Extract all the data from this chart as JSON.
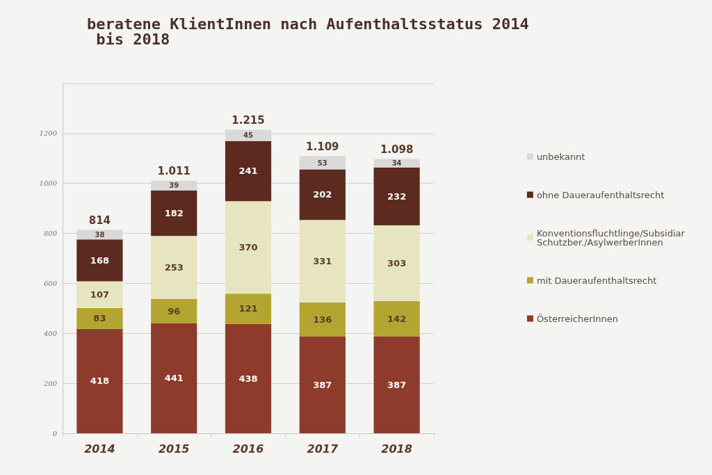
{
  "chart_data": {
    "type": "bar",
    "title": "beratene KlientInnen nach Aufenthaltsstatus 2014 bis 2018",
    "categories": [
      "2014",
      "2015",
      "2016",
      "2017",
      "2018"
    ],
    "stacked": true,
    "series": [
      {
        "name": "ÖsterreicherInnen",
        "color": "#8e3b2b",
        "values": [
          418,
          441,
          438,
          387,
          387
        ]
      },
      {
        "name": "mit Daueraufenthaltsrecht",
        "color": "#b3a530",
        "values": [
          83,
          96,
          121,
          136,
          142
        ]
      },
      {
        "name": "Konventionsfluchtlinge/Subsidiar Schutzber./AsylwerberInnen",
        "color": "#e6e5c0",
        "values": [
          107,
          253,
          370,
          331,
          303
        ]
      },
      {
        "name": "ohne Daueraufenthaltsrecht",
        "color": "#5c2a1e",
        "values": [
          168,
          182,
          241,
          202,
          232
        ]
      },
      {
        "name": "unbekannt",
        "color": "#d9d9d9",
        "values": [
          38,
          39,
          45,
          53,
          34
        ]
      }
    ],
    "totals": [
      "814",
      "1.011",
      "1.215",
      "1.109",
      "1.098"
    ],
    "ylim": [
      0,
      1400
    ],
    "yticks": [
      0,
      200,
      400,
      600,
      800,
      1000,
      1200,
      {
        "value": 1400,
        "label": null
      }
    ],
    "grid": true,
    "legend": "right",
    "data_labels": true
  }
}
